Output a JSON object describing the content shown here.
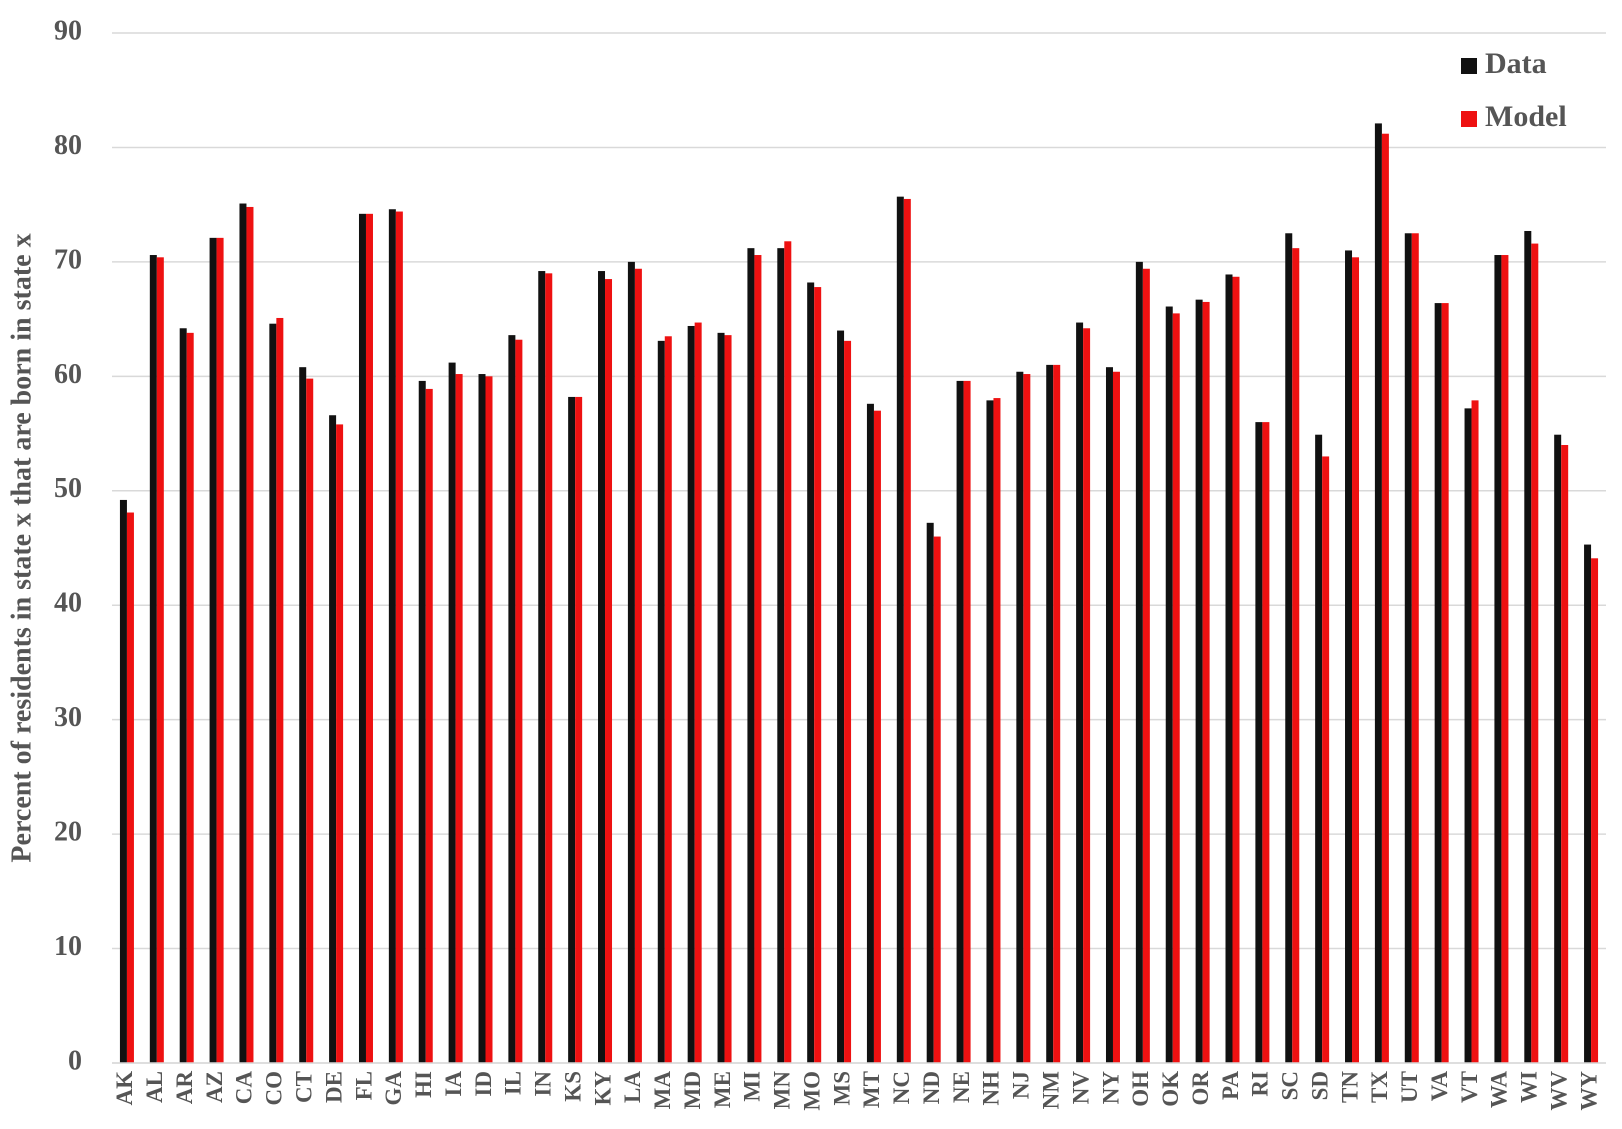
{
  "chart_data": {
    "type": "bar",
    "ylabel": "Percent of residents in state x that are born in state x",
    "categories": [
      "AK",
      "AL",
      "AR",
      "AZ",
      "CA",
      "CO",
      "CT",
      "DE",
      "FL",
      "GA",
      "HI",
      "IA",
      "ID",
      "IL",
      "IN",
      "KS",
      "KY",
      "LA",
      "MA",
      "MD",
      "ME",
      "MI",
      "MN",
      "MO",
      "MS",
      "MT",
      "NC",
      "ND",
      "NE",
      "NH",
      "NJ",
      "NM",
      "NV",
      "NY",
      "OH",
      "OK",
      "OR",
      "PA",
      "RI",
      "SC",
      "SD",
      "TN",
      "TX",
      "UT",
      "VA",
      "VT",
      "WA",
      "WI",
      "WV",
      "WY"
    ],
    "series": [
      {
        "name": "Data",
        "color": "#111111",
        "values": [
          49.2,
          70.6,
          64.2,
          72.1,
          75.1,
          64.6,
          60.8,
          56.6,
          74.2,
          74.6,
          59.6,
          61.2,
          60.2,
          63.6,
          69.2,
          58.2,
          69.2,
          70.0,
          63.1,
          64.4,
          63.8,
          71.2,
          71.2,
          68.2,
          64.0,
          57.6,
          75.7,
          47.2,
          59.6,
          57.9,
          60.4,
          61.0,
          64.7,
          60.8,
          70.0,
          66.1,
          66.7,
          68.9,
          56.0,
          72.5,
          54.9,
          71.0,
          82.1,
          72.5,
          66.4,
          57.2,
          70.6,
          72.7,
          54.9,
          45.3
        ]
      },
      {
        "name": "Model",
        "color": "#ee1111",
        "values": [
          48.1,
          70.4,
          63.8,
          72.1,
          74.8,
          65.1,
          59.8,
          55.8,
          74.2,
          74.4,
          58.9,
          60.2,
          60.0,
          63.2,
          69.0,
          58.2,
          68.5,
          69.4,
          63.5,
          64.7,
          63.6,
          70.6,
          71.8,
          67.8,
          63.1,
          57.0,
          75.5,
          46.0,
          59.6,
          58.1,
          60.2,
          61.0,
          64.2,
          60.4,
          69.4,
          65.5,
          66.5,
          68.7,
          56.0,
          71.2,
          53.0,
          70.4,
          81.2,
          72.5,
          66.4,
          57.9,
          70.6,
          71.6,
          54.0,
          44.1
        ]
      }
    ],
    "ylim": [
      0,
      90
    ],
    "yticks": [
      0,
      10,
      20,
      30,
      40,
      50,
      60,
      70,
      80,
      90
    ],
    "grid": true,
    "legend": "top-right"
  }
}
